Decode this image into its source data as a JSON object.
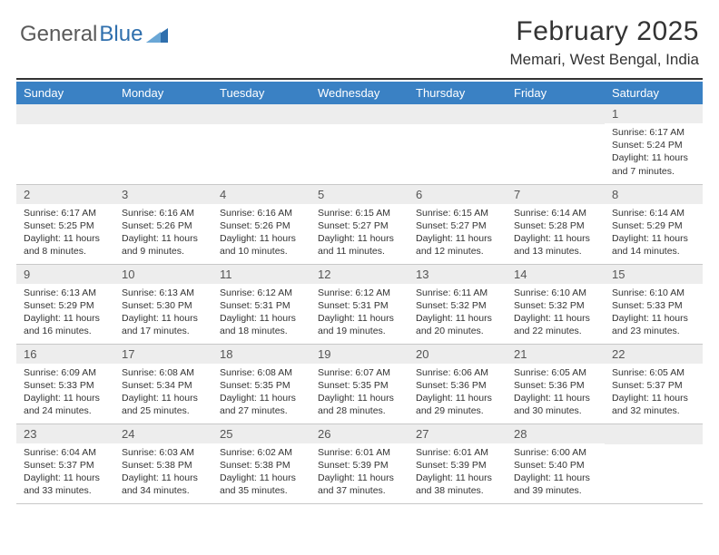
{
  "logo": {
    "text1": "General",
    "text2": "Blue",
    "triangle_color": "#2f6fad"
  },
  "title": "February 2025",
  "location": "Memari, West Bengal, India",
  "header_bg": "#3a81c4",
  "daynum_bg": "#ededed",
  "divider_color": "#333333",
  "days_of_week": [
    "Sunday",
    "Monday",
    "Tuesday",
    "Wednesday",
    "Thursday",
    "Friday",
    "Saturday"
  ],
  "weeks": [
    [
      null,
      null,
      null,
      null,
      null,
      null,
      {
        "n": "1",
        "sunrise": "Sunrise: 6:17 AM",
        "sunset": "Sunset: 5:24 PM",
        "day1": "Daylight: 11 hours",
        "day2": "and 7 minutes."
      }
    ],
    [
      {
        "n": "2",
        "sunrise": "Sunrise: 6:17 AM",
        "sunset": "Sunset: 5:25 PM",
        "day1": "Daylight: 11 hours",
        "day2": "and 8 minutes."
      },
      {
        "n": "3",
        "sunrise": "Sunrise: 6:16 AM",
        "sunset": "Sunset: 5:26 PM",
        "day1": "Daylight: 11 hours",
        "day2": "and 9 minutes."
      },
      {
        "n": "4",
        "sunrise": "Sunrise: 6:16 AM",
        "sunset": "Sunset: 5:26 PM",
        "day1": "Daylight: 11 hours",
        "day2": "and 10 minutes."
      },
      {
        "n": "5",
        "sunrise": "Sunrise: 6:15 AM",
        "sunset": "Sunset: 5:27 PM",
        "day1": "Daylight: 11 hours",
        "day2": "and 11 minutes."
      },
      {
        "n": "6",
        "sunrise": "Sunrise: 6:15 AM",
        "sunset": "Sunset: 5:27 PM",
        "day1": "Daylight: 11 hours",
        "day2": "and 12 minutes."
      },
      {
        "n": "7",
        "sunrise": "Sunrise: 6:14 AM",
        "sunset": "Sunset: 5:28 PM",
        "day1": "Daylight: 11 hours",
        "day2": "and 13 minutes."
      },
      {
        "n": "8",
        "sunrise": "Sunrise: 6:14 AM",
        "sunset": "Sunset: 5:29 PM",
        "day1": "Daylight: 11 hours",
        "day2": "and 14 minutes."
      }
    ],
    [
      {
        "n": "9",
        "sunrise": "Sunrise: 6:13 AM",
        "sunset": "Sunset: 5:29 PM",
        "day1": "Daylight: 11 hours",
        "day2": "and 16 minutes."
      },
      {
        "n": "10",
        "sunrise": "Sunrise: 6:13 AM",
        "sunset": "Sunset: 5:30 PM",
        "day1": "Daylight: 11 hours",
        "day2": "and 17 minutes."
      },
      {
        "n": "11",
        "sunrise": "Sunrise: 6:12 AM",
        "sunset": "Sunset: 5:31 PM",
        "day1": "Daylight: 11 hours",
        "day2": "and 18 minutes."
      },
      {
        "n": "12",
        "sunrise": "Sunrise: 6:12 AM",
        "sunset": "Sunset: 5:31 PM",
        "day1": "Daylight: 11 hours",
        "day2": "and 19 minutes."
      },
      {
        "n": "13",
        "sunrise": "Sunrise: 6:11 AM",
        "sunset": "Sunset: 5:32 PM",
        "day1": "Daylight: 11 hours",
        "day2": "and 20 minutes."
      },
      {
        "n": "14",
        "sunrise": "Sunrise: 6:10 AM",
        "sunset": "Sunset: 5:32 PM",
        "day1": "Daylight: 11 hours",
        "day2": "and 22 minutes."
      },
      {
        "n": "15",
        "sunrise": "Sunrise: 6:10 AM",
        "sunset": "Sunset: 5:33 PM",
        "day1": "Daylight: 11 hours",
        "day2": "and 23 minutes."
      }
    ],
    [
      {
        "n": "16",
        "sunrise": "Sunrise: 6:09 AM",
        "sunset": "Sunset: 5:33 PM",
        "day1": "Daylight: 11 hours",
        "day2": "and 24 minutes."
      },
      {
        "n": "17",
        "sunrise": "Sunrise: 6:08 AM",
        "sunset": "Sunset: 5:34 PM",
        "day1": "Daylight: 11 hours",
        "day2": "and 25 minutes."
      },
      {
        "n": "18",
        "sunrise": "Sunrise: 6:08 AM",
        "sunset": "Sunset: 5:35 PM",
        "day1": "Daylight: 11 hours",
        "day2": "and 27 minutes."
      },
      {
        "n": "19",
        "sunrise": "Sunrise: 6:07 AM",
        "sunset": "Sunset: 5:35 PM",
        "day1": "Daylight: 11 hours",
        "day2": "and 28 minutes."
      },
      {
        "n": "20",
        "sunrise": "Sunrise: 6:06 AM",
        "sunset": "Sunset: 5:36 PM",
        "day1": "Daylight: 11 hours",
        "day2": "and 29 minutes."
      },
      {
        "n": "21",
        "sunrise": "Sunrise: 6:05 AM",
        "sunset": "Sunset: 5:36 PM",
        "day1": "Daylight: 11 hours",
        "day2": "and 30 minutes."
      },
      {
        "n": "22",
        "sunrise": "Sunrise: 6:05 AM",
        "sunset": "Sunset: 5:37 PM",
        "day1": "Daylight: 11 hours",
        "day2": "and 32 minutes."
      }
    ],
    [
      {
        "n": "23",
        "sunrise": "Sunrise: 6:04 AM",
        "sunset": "Sunset: 5:37 PM",
        "day1": "Daylight: 11 hours",
        "day2": "and 33 minutes."
      },
      {
        "n": "24",
        "sunrise": "Sunrise: 6:03 AM",
        "sunset": "Sunset: 5:38 PM",
        "day1": "Daylight: 11 hours",
        "day2": "and 34 minutes."
      },
      {
        "n": "25",
        "sunrise": "Sunrise: 6:02 AM",
        "sunset": "Sunset: 5:38 PM",
        "day1": "Daylight: 11 hours",
        "day2": "and 35 minutes."
      },
      {
        "n": "26",
        "sunrise": "Sunrise: 6:01 AM",
        "sunset": "Sunset: 5:39 PM",
        "day1": "Daylight: 11 hours",
        "day2": "and 37 minutes."
      },
      {
        "n": "27",
        "sunrise": "Sunrise: 6:01 AM",
        "sunset": "Sunset: 5:39 PM",
        "day1": "Daylight: 11 hours",
        "day2": "and 38 minutes."
      },
      {
        "n": "28",
        "sunrise": "Sunrise: 6:00 AM",
        "sunset": "Sunset: 5:40 PM",
        "day1": "Daylight: 11 hours",
        "day2": "and 39 minutes."
      },
      null
    ]
  ]
}
